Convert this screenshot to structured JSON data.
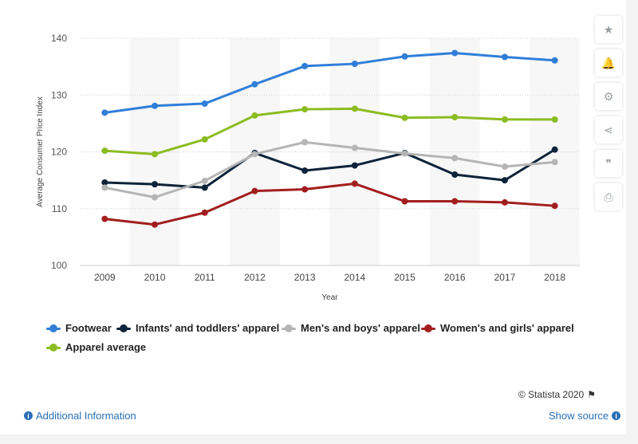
{
  "chart_data": {
    "type": "line",
    "title": "",
    "xlabel": "Year",
    "ylabel": "Average Consumer Price Index",
    "x": [
      "2009",
      "2010",
      "2011",
      "2012",
      "2013",
      "2014",
      "2015",
      "2016",
      "2017",
      "2018"
    ],
    "ylim": [
      100,
      140
    ],
    "yticks": [
      100,
      110,
      120,
      130,
      140
    ],
    "grid": true,
    "legend": "bottom",
    "series": [
      {
        "name": "Footwear",
        "color": "#2f7ed8",
        "values": [
          126.9,
          128.1,
          128.5,
          131.9,
          135.1,
          135.5,
          136.8,
          137.4,
          136.7,
          136.1
        ]
      },
      {
        "name": "Infants' and toddlers' apparel",
        "color": "#0d233a",
        "values": [
          114.6,
          114.3,
          113.7,
          119.8,
          116.7,
          117.6,
          119.8,
          116.0,
          115.0,
          120.4
        ]
      },
      {
        "name": "Men's and boys' apparel",
        "color": "#b5b5b5",
        "values": [
          113.7,
          112.0,
          114.9,
          119.6,
          121.7,
          120.7,
          119.7,
          118.9,
          117.4,
          118.2
        ]
      },
      {
        "name": "Women's and girls' apparel",
        "color": "#a21e1e",
        "values": [
          108.2,
          107.2,
          109.3,
          113.1,
          113.4,
          114.4,
          111.3,
          111.3,
          111.1,
          110.5
        ]
      },
      {
        "name": "Apparel average",
        "color": "#8bbc21",
        "values": [
          120.2,
          119.6,
          122.2,
          126.4,
          127.5,
          127.6,
          126.0,
          126.1,
          125.7,
          125.7
        ]
      }
    ]
  },
  "side_buttons": [
    {
      "name": "star-icon",
      "glyph": "★"
    },
    {
      "name": "bell-icon",
      "glyph": "🔔"
    },
    {
      "name": "gear-icon",
      "glyph": "⚙"
    },
    {
      "name": "share-icon",
      "glyph": "⋖"
    },
    {
      "name": "quote-icon",
      "glyph": "❞"
    },
    {
      "name": "print-icon",
      "glyph": "⎙"
    }
  ],
  "footer": {
    "credit": "© Statista 2020",
    "additional_info": "Additional Information",
    "show_source": "Show source"
  }
}
